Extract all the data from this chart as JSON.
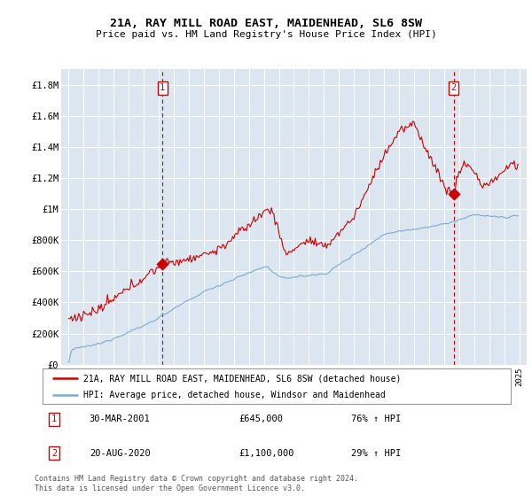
{
  "title1": "21A, RAY MILL ROAD EAST, MAIDENHEAD, SL6 8SW",
  "title2": "Price paid vs. HM Land Registry's House Price Index (HPI)",
  "background_color": "#dce6f0",
  "plot_bg_color": "#dce6f0",
  "red_line_label": "21A, RAY MILL ROAD EAST, MAIDENHEAD, SL6 8SW (detached house)",
  "blue_line_label": "HPI: Average price, detached house, Windsor and Maidenhead",
  "annotation1": {
    "num": "1",
    "date": "30-MAR-2001",
    "price": "£645,000",
    "hpi": "76% ↑ HPI"
  },
  "annotation2": {
    "num": "2",
    "date": "20-AUG-2020",
    "price": "£1,100,000",
    "hpi": "29% ↑ HPI"
  },
  "footnote": "Contains HM Land Registry data © Crown copyright and database right 2024.\nThis data is licensed under the Open Government Licence v3.0.",
  "red_color": "#cc0000",
  "blue_color": "#7aaad0",
  "dashed_color": "#cc0000",
  "ylim_min": 0,
  "ylim_max": 1900000,
  "yticks": [
    0,
    200000,
    400000,
    600000,
    800000,
    1000000,
    1200000,
    1400000,
    1600000,
    1800000
  ],
  "ytick_labels": [
    "£0",
    "£200K",
    "£400K",
    "£600K",
    "£800K",
    "£1M",
    "£1.2M",
    "£1.4M",
    "£1.6M",
    "£1.8M"
  ],
  "sale1_year": 2001.247,
  "sale1_price": 645000,
  "sale2_year": 2020.633,
  "sale2_price": 1100000,
  "xmin": 1994.5,
  "xmax": 2025.5
}
